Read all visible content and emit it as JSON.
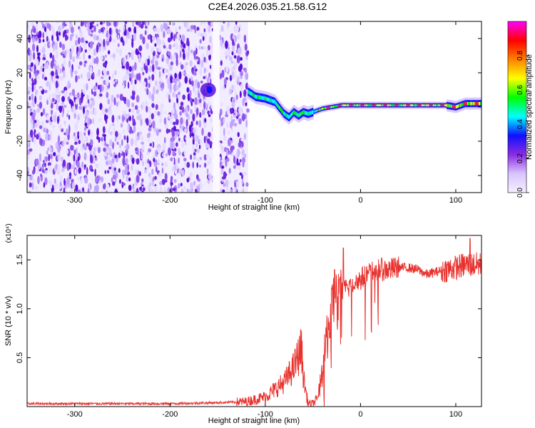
{
  "title": "C2E4.2026.035.21.58.G12",
  "chart_data": [
    {
      "type": "heatmap",
      "title": "C2E4.2026.035.21.58.G12",
      "xlabel": "Height of straight line (km)",
      "ylabel": "Frequency (Hz)",
      "xlim": [
        -350,
        127
      ],
      "ylim": [
        -50,
        50
      ],
      "xticks": [
        "-300",
        "-200",
        "-100",
        "0",
        "100"
      ],
      "xtick_values": [
        -300,
        -200,
        -100,
        0,
        100
      ],
      "yticks": [
        "-40",
        "-20",
        "0",
        "20",
        "40"
      ],
      "ytick_values": [
        -40,
        -20,
        0,
        20,
        40
      ],
      "colorbar": {
        "label": "Normalized spectral amplitude",
        "range": [
          0,
          1
        ],
        "ticks": [
          "0.0",
          "0.2",
          "0.4",
          "0.6",
          "0.8"
        ],
        "tick_values": [
          0,
          0.2,
          0.4,
          0.6,
          0.8
        ],
        "colors": [
          "#f4f0ff",
          "#d9c4ff",
          "#8a2be2",
          "#1010ff",
          "#00ffff",
          "#00ff00",
          "#ffff00",
          "#ff8000",
          "#ff0000",
          "#ff00ff"
        ]
      },
      "noise_region": [
        -350,
        -118
      ],
      "gap_region": [
        -155,
        -148
      ],
      "ridge": {
        "x": [
          -118,
          -110,
          -100,
          -90,
          -80,
          -75,
          -70,
          -65,
          -60,
          -55,
          -50,
          -40,
          -30,
          -20,
          -10,
          0,
          20,
          40,
          60,
          80,
          90,
          100,
          110,
          120,
          127
        ],
        "y": [
          9,
          6,
          5,
          3,
          -4,
          -6,
          -3,
          -5,
          -3,
          -4,
          -3,
          -1,
          0,
          1,
          1,
          1,
          1,
          1,
          1,
          1,
          1,
          0,
          2,
          2,
          2
        ]
      },
      "blob": {
        "x": -160,
        "y": 10
      }
    },
    {
      "type": "line",
      "xlabel": "Height of straight line (km)",
      "ylabel": "SNR (10 * v/v)",
      "y_multiplier": "(x10⁴)",
      "xlim": [
        -350,
        127
      ],
      "ylim": [
        0,
        1.75
      ],
      "xticks": [
        "-300",
        "-200",
        "-100",
        "0",
        "100"
      ],
      "xtick_values": [
        -300,
        -200,
        -100,
        0,
        100
      ],
      "yticks": [
        "0.5",
        "1.0",
        "1.5"
      ],
      "ytick_values": [
        0.5,
        1.0,
        1.5
      ],
      "color": "#e8322e",
      "envelope": {
        "x": [
          -350,
          -200,
          -150,
          -120,
          -100,
          -80,
          -70,
          -62,
          -60,
          -55,
          -50,
          -45,
          -40,
          -35,
          -30,
          -25,
          -20,
          -15,
          -10,
          0,
          10,
          20,
          30,
          40,
          50,
          60,
          70,
          80,
          90,
          100,
          110,
          120,
          127
        ],
        "y": [
          0.03,
          0.03,
          0.04,
          0.05,
          0.1,
          0.25,
          0.4,
          0.6,
          0.3,
          0.03,
          0.03,
          0.08,
          0.35,
          0.75,
          1.0,
          1.05,
          1.15,
          1.2,
          1.25,
          1.3,
          1.37,
          1.4,
          1.4,
          1.42,
          1.42,
          1.4,
          1.35,
          1.38,
          1.4,
          1.42,
          1.45,
          1.45,
          1.45
        ]
      },
      "spikes": [
        {
          "x": -27,
          "y": 1.4
        },
        {
          "x": -18,
          "y": 1.62
        },
        {
          "x": -22,
          "y": 1.3
        },
        {
          "x": 115,
          "y": 1.72
        }
      ]
    }
  ]
}
